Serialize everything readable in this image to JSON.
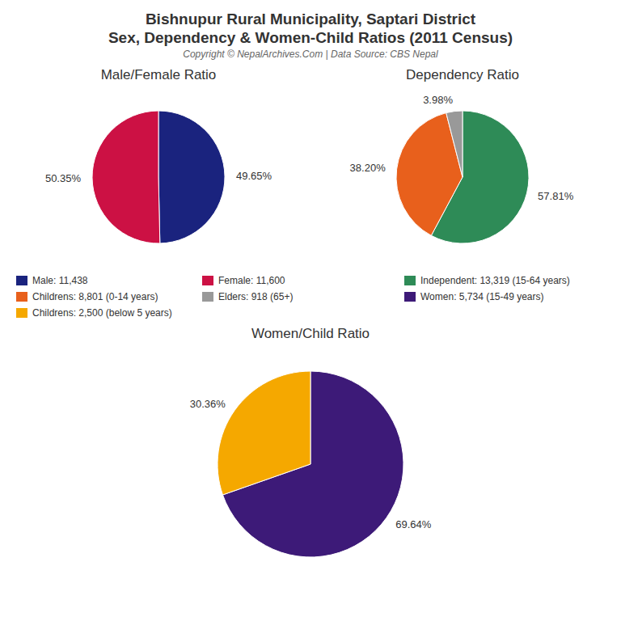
{
  "title": "Bishnupur Rural Municipality, Saptari District",
  "subtitle": "Sex, Dependency & Women-Child Ratios (2011 Census)",
  "annotations": [
    "Copyright © NepalArchives.Com | Data Source: CBS Nepal"
  ],
  "chart_data": [
    {
      "type": "pie",
      "title": "Male/Female Ratio",
      "categories": [
        "Male: 11,438",
        "Female: 11,600"
      ],
      "values": [
        49.65,
        50.35
      ],
      "value_labels": [
        "49.65%",
        "50.35%"
      ],
      "colors": [
        "#1a237e",
        "#cc1144"
      ],
      "data_labels": true,
      "legend": "bottom"
    },
    {
      "type": "pie",
      "title": "Dependency Ratio",
      "categories": [
        "Independent: 13,319 (15-64 years)",
        "Childrens: 8,801 (0-14 years)",
        "Elders: 918 (65+)"
      ],
      "values": [
        57.81,
        38.2,
        3.98
      ],
      "value_labels": [
        "57.81%",
        "38.20%",
        "3.98%"
      ],
      "colors": [
        "#2e8b57",
        "#e8601c",
        "#999999"
      ],
      "data_labels": true,
      "legend": "bottom"
    },
    {
      "type": "pie",
      "title": "Women/Child Ratio",
      "categories": [
        "Women: 5,734 (15-49 years)",
        "Childrens: 2,500 (below 5 years)"
      ],
      "values": [
        69.64,
        30.36
      ],
      "value_labels": [
        "69.64%",
        "30.36%"
      ],
      "colors": [
        "#3d1a78",
        "#f5a800"
      ],
      "data_labels": true,
      "legend": "top"
    }
  ]
}
